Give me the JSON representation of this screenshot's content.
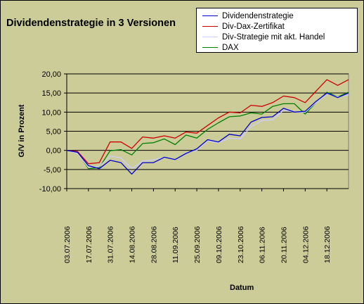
{
  "chart_data": {
    "type": "line",
    "title": "Dividendenstrategie in 3 Versionen",
    "xlabel": "Datum",
    "ylabel": "G/V in Prozent",
    "ylim": [
      -10,
      20
    ],
    "yticks": [
      "-10,00",
      "-5,00",
      "0,00",
      "5,00",
      "10,00",
      "15,00",
      "20,00"
    ],
    "x_tick_labels": [
      "03.07.2006",
      "17.07.2006",
      "31.07.2006",
      "14.08.2006",
      "28.08.2006",
      "11.09.2006",
      "25.09.2006",
      "09.10.2006",
      "23.10.2006",
      "06.11.2006",
      "20.11.2006",
      "04.12.2006",
      "18.12.2006"
    ],
    "x": [
      "03.07.2006",
      "10.07.2006",
      "17.07.2006",
      "24.07.2006",
      "31.07.2006",
      "07.08.2006",
      "14.08.2006",
      "21.08.2006",
      "28.08.2006",
      "04.09.2006",
      "11.09.2006",
      "18.09.2006",
      "25.09.2006",
      "02.10.2006",
      "09.10.2006",
      "16.10.2006",
      "23.10.2006",
      "30.10.2006",
      "06.11.2006",
      "13.11.2006",
      "20.11.2006",
      "27.11.2006",
      "04.12.2006",
      "11.12.2006",
      "18.12.2006",
      "25.12.2006",
      "01.01.2007"
    ],
    "grid": "horizontal",
    "legend_position": "top-right",
    "series": [
      {
        "name": "Dividendenstrategie",
        "color": "#0000cc",
        "values": [
          0.0,
          -0.5,
          -4.0,
          -4.8,
          -2.6,
          -3.2,
          -6.2,
          -3.2,
          -3.2,
          -1.8,
          -2.4,
          -0.8,
          0.4,
          2.8,
          2.2,
          4.2,
          3.8,
          7.4,
          8.6,
          8.8,
          11.0,
          10.0,
          10.2,
          12.8,
          15.0,
          13.8,
          15.0
        ]
      },
      {
        "name": "Div-Dax-Zertifikat",
        "color": "#cc0000",
        "values": [
          0.0,
          -0.3,
          -3.5,
          -3.2,
          2.2,
          2.2,
          0.5,
          3.5,
          3.2,
          3.8,
          3.2,
          4.8,
          4.5,
          6.5,
          8.5,
          10.0,
          9.8,
          11.8,
          11.5,
          12.5,
          14.2,
          13.8,
          12.5,
          15.5,
          18.5,
          17.0,
          18.5
        ]
      },
      {
        "name": "Div-Strategie mit akt. Handel",
        "color": "#ccccff",
        "values": [
          0.0,
          -0.8,
          -4.5,
          -4.2,
          -1.5,
          -2.0,
          -4.8,
          -2.8,
          -2.5,
          -1.8,
          -2.5,
          -0.6,
          0.0,
          2.5,
          2.0,
          3.2,
          3.0,
          6.2,
          7.8,
          8.0,
          10.5,
          10.0,
          10.0,
          12.5,
          14.8,
          14.0,
          14.5
        ]
      },
      {
        "name": "DAX",
        "color": "#008000",
        "values": [
          0.0,
          -0.5,
          -4.8,
          -4.5,
          -0.1,
          0.2,
          -1.2,
          1.8,
          2.0,
          3.0,
          1.5,
          4.0,
          3.2,
          5.5,
          7.2,
          8.8,
          9.0,
          9.8,
          9.5,
          11.5,
          12.2,
          12.2,
          9.5,
          12.5,
          15.2,
          14.0,
          15.2
        ]
      }
    ]
  }
}
